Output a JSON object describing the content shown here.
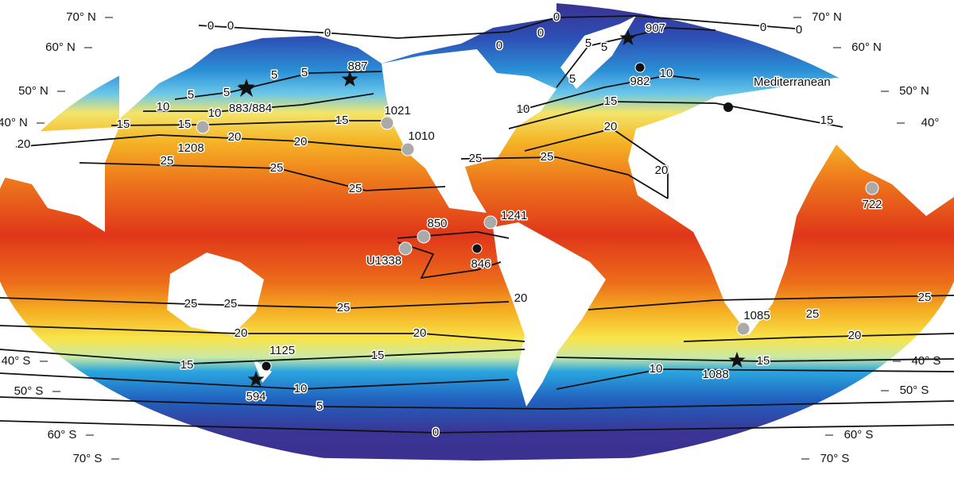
{
  "title_region": "Mediterranean",
  "lat_labels_left": [
    "70° N",
    "60° N",
    "50° N",
    "40° N",
    "40° S",
    "50° S",
    "60° S",
    "70° S"
  ],
  "lat_labels_right": [
    "70° N",
    "60° N",
    "50° N",
    "40°",
    "40° S",
    "50° S",
    "60° S",
    "70° S"
  ],
  "sites": [
    {
      "label": "907",
      "marker": "star"
    },
    {
      "label": "887",
      "marker": "star"
    },
    {
      "label": "982",
      "marker": "dot"
    },
    {
      "label": "883/884",
      "marker": "star"
    },
    {
      "label": "1021",
      "marker": "grey"
    },
    {
      "label": "1010",
      "marker": "grey"
    },
    {
      "label": "1208",
      "marker": "grey"
    },
    {
      "label": "850",
      "marker": "grey"
    },
    {
      "label": "1241",
      "marker": "grey"
    },
    {
      "label": "U1338",
      "marker": "grey"
    },
    {
      "label": "846",
      "marker": "dot"
    },
    {
      "label": "722",
      "marker": "grey"
    },
    {
      "label": "1085",
      "marker": "grey"
    },
    {
      "label": "1088",
      "marker": "star"
    },
    {
      "label": "1125",
      "marker": "dot"
    },
    {
      "label": "594",
      "marker": "star"
    }
  ],
  "contour_labels": [
    0,
    0,
    0,
    0,
    0,
    0,
    0,
    0,
    0,
    5,
    5,
    5,
    5,
    5,
    5,
    5,
    5,
    10,
    10,
    10,
    10,
    10,
    10,
    15,
    15,
    15,
    15,
    15,
    15,
    15,
    15,
    20,
    20,
    20,
    20,
    20,
    20,
    20,
    20,
    20,
    25,
    25,
    25,
    25,
    25,
    25,
    25,
    25,
    25,
    25
  ]
}
